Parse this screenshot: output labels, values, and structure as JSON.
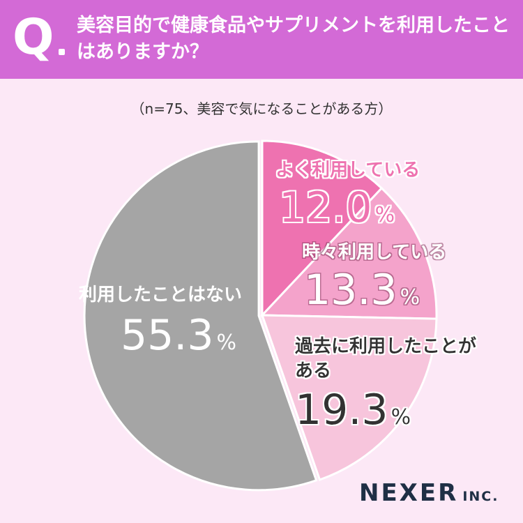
{
  "header": {
    "q": "Q",
    "question": "美容目的で健康食品やサプリメントを利用したことはありますか？",
    "bg_color": "#d36ad6"
  },
  "subtitle": "（n=75、美容で気になることがある方）",
  "chart_data": {
    "type": "pie",
    "title": "美容目的で健康食品やサプリメントを利用したことはありますか？",
    "note": "（n=75、美容で気になることがある方）",
    "start": "12 o'clock, clockwise",
    "slices": [
      {
        "label": "よく利用している",
        "value": 12.0,
        "display": "12.0",
        "color": "#ee72b0",
        "label_color": "#ee72b0"
      },
      {
        "label": "時々利用している",
        "value": 13.3,
        "display": "13.3",
        "color": "#f4a3cb",
        "label_color": "#ffffff"
      },
      {
        "label": "過去に利用したことがある",
        "value": 19.3,
        "display": "19.3",
        "color": "#f7c5dc",
        "label_color": "#333333"
      },
      {
        "label": "利用したことはない",
        "value": 55.3,
        "display": "55.3",
        "color": "#a5a5a5",
        "label_color": "#ffffff"
      }
    ],
    "unit": "%"
  },
  "logo": {
    "main": "NEXER",
    "inc": "INC."
  }
}
